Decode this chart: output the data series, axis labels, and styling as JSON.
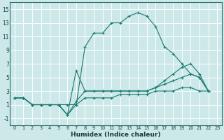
{
  "xlabel": "Humidex (Indice chaleur)",
  "background_color": "#cce8e8",
  "grid_color": "#ffffff",
  "line_color": "#1a7a6e",
  "xlim": [
    -0.5,
    23.5
  ],
  "ylim": [
    -2,
    16
  ],
  "xticks": [
    0,
    1,
    2,
    3,
    4,
    5,
    6,
    7,
    8,
    9,
    10,
    11,
    12,
    13,
    14,
    15,
    16,
    17,
    18,
    19,
    20,
    21,
    22,
    23
  ],
  "yticks": [
    -1,
    1,
    3,
    5,
    7,
    9,
    11,
    13,
    15
  ],
  "line1_x": [
    0,
    1,
    2,
    3,
    4,
    5,
    6,
    7,
    8,
    9,
    10,
    11,
    12,
    13,
    14,
    15,
    16,
    17,
    18,
    19,
    20,
    21,
    22
  ],
  "line1_y": [
    2,
    2,
    1,
    1,
    1,
    1,
    1,
    1,
    9.5,
    11.5,
    11.5,
    13,
    13,
    14,
    14.5,
    14,
    12.5,
    9.5,
    8.5,
    7,
    5.5,
    5,
    3
  ],
  "line2_x": [
    0,
    1,
    2,
    3,
    4,
    5,
    6,
    7,
    8,
    9,
    10,
    11,
    12,
    13,
    14,
    15,
    16,
    17,
    18,
    19,
    20,
    21,
    22
  ],
  "line2_y": [
    2,
    2,
    1,
    1,
    1,
    1,
    -0.5,
    1,
    2,
    2,
    2,
    2,
    2.5,
    2.5,
    2.5,
    2.5,
    3,
    3,
    3,
    3.5,
    3.5,
    3,
    3
  ],
  "line3_x": [
    0,
    1,
    2,
    3,
    4,
    5,
    6,
    7,
    8,
    9,
    10,
    11,
    12,
    13,
    14,
    15,
    16,
    17,
    18,
    19,
    20,
    21,
    22
  ],
  "line3_y": [
    2,
    2,
    1,
    1,
    1,
    1,
    -0.5,
    1.5,
    3,
    3,
    3,
    3,
    3,
    3,
    3,
    3,
    3.5,
    4,
    4.5,
    5,
    5.5,
    5,
    3
  ],
  "line4_x": [
    0,
    1,
    2,
    3,
    4,
    5,
    6,
    7,
    8,
    9,
    10,
    11,
    12,
    13,
    14,
    15,
    16,
    17,
    18,
    19,
    20,
    21,
    22
  ],
  "line4_y": [
    2,
    2,
    1,
    1,
    1,
    1,
    -0.5,
    6,
    3,
    3,
    3,
    3,
    3,
    3,
    3,
    3,
    3.5,
    4.5,
    5.5,
    6.5,
    7,
    5.5,
    3
  ]
}
